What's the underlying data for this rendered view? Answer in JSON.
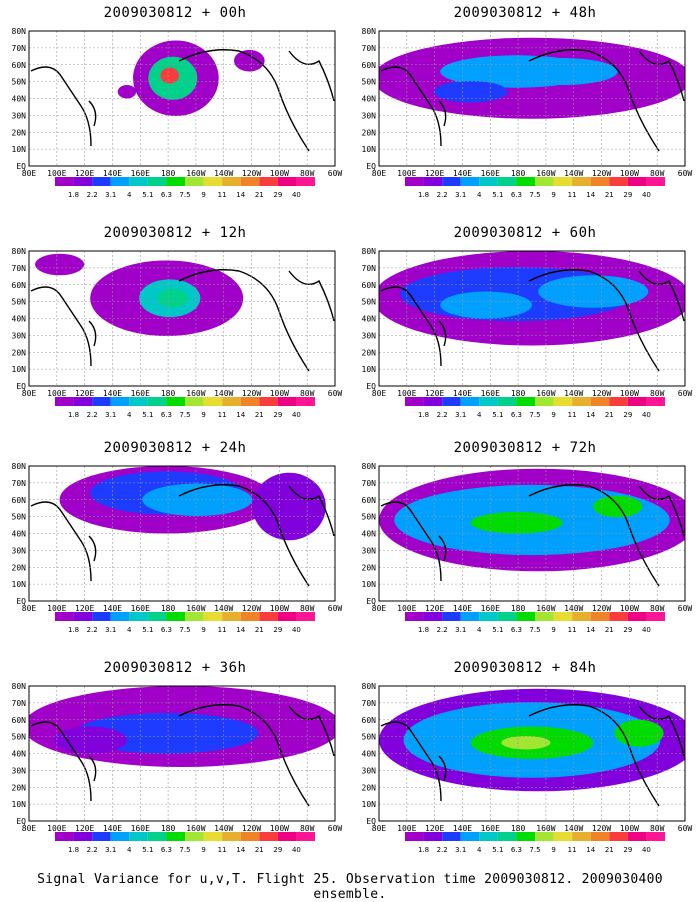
{
  "panels": [
    {
      "title": "2009030812 + 00h"
    },
    {
      "title": "2009030812 + 48h"
    },
    {
      "title": "2009030812 + 12h"
    },
    {
      "title": "2009030812 + 60h"
    },
    {
      "title": "2009030812 + 24h"
    },
    {
      "title": "2009030812 + 72h"
    },
    {
      "title": "2009030812 + 36h"
    },
    {
      "title": "2009030812 + 84h"
    }
  ],
  "lat_labels": [
    "80N",
    "70N",
    "60N",
    "50N",
    "40N",
    "30N",
    "20N",
    "10N",
    "EQ"
  ],
  "lon_labels": [
    "80E",
    "100E",
    "120E",
    "140E",
    "160E",
    "180",
    "160W",
    "140W",
    "120W",
    "100W",
    "80W",
    "60W"
  ],
  "colorbar": {
    "labels": [
      "1.8",
      "2.2",
      "3.1",
      "4",
      "5.1",
      "6.3",
      "7.5",
      "9",
      "11",
      "14",
      "21",
      "29",
      "40"
    ],
    "colors": [
      "#a000c8",
      "#8200dc",
      "#1e3cff",
      "#00a0ff",
      "#00c8c8",
      "#00d28c",
      "#00dc00",
      "#a0e632",
      "#e6dc32",
      "#e6af2d",
      "#f08228",
      "#fa3c3c",
      "#f00082",
      "#ff1493"
    ]
  },
  "footer": "Signal Variance for u,v,T. Flight 25. Observation time 2009030812. 2009030400 ensemble."
}
